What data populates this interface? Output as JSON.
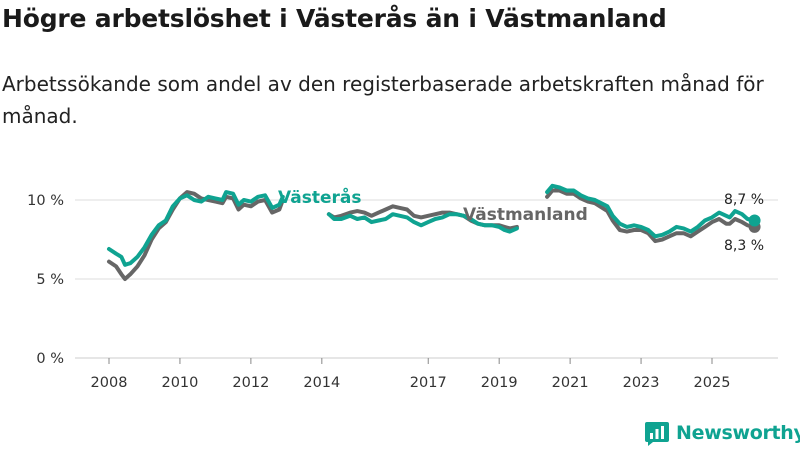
{
  "header": {
    "title": "Högre arbetslöshet i Västerås än i Västmanland",
    "subtitle": "Arbetssökande som andel av den registerbaserade arbetskraften månad för månad."
  },
  "brand": {
    "name": "Newsworthy"
  },
  "colors": {
    "vasteras": "#0fa391",
    "vastmanland": "#666666",
    "grid": "#dddddd",
    "brand": "#0fa391"
  },
  "chart_data": {
    "type": "line",
    "title": "Högre arbetslöshet i Västerås än i Västmanland",
    "subtitle": "Arbetssökande som andel av den registerbaserade arbetskraften månad för månad.",
    "xlabel": "",
    "ylabel": "",
    "ylim": [
      0,
      12
    ],
    "yticks": [
      0,
      5,
      10
    ],
    "ytick_labels": [
      "0 %",
      "5 %",
      "10 %"
    ],
    "xticks": [
      2008,
      2010,
      2012,
      2014,
      2017,
      2019,
      2021,
      2023,
      2025
    ],
    "xtick_labels": [
      "2008",
      "2010",
      "2012",
      "2014",
      "2017",
      "2019",
      "2021",
      "2023",
      "2025"
    ],
    "grid": true,
    "series": [
      {
        "name": "Västerås",
        "end_label": "8,7 %",
        "points": [
          [
            2008.0,
            6.9
          ],
          [
            2008.2,
            6.6
          ],
          [
            2008.35,
            6.4
          ],
          [
            2008.45,
            5.9
          ],
          [
            2008.6,
            6.0
          ],
          [
            2008.8,
            6.4
          ],
          [
            2009.0,
            7.0
          ],
          [
            2009.2,
            7.8
          ],
          [
            2009.4,
            8.4
          ],
          [
            2009.6,
            8.7
          ],
          [
            2009.8,
            9.6
          ],
          [
            2010.0,
            10.1
          ],
          [
            2010.2,
            10.3
          ],
          [
            2010.4,
            10.0
          ],
          [
            2010.6,
            9.9
          ],
          [
            2010.8,
            10.2
          ],
          [
            2011.0,
            10.1
          ],
          [
            2011.2,
            10.0
          ],
          [
            2011.3,
            10.5
          ],
          [
            2011.5,
            10.4
          ],
          [
            2011.65,
            9.7
          ],
          [
            2011.8,
            10.0
          ],
          [
            2012.0,
            9.9
          ],
          [
            2012.2,
            10.2
          ],
          [
            2012.4,
            10.3
          ],
          [
            2012.6,
            9.5
          ],
          [
            2012.8,
            9.7
          ],
          [
            2012.9,
            10.2
          ],
          [
            2014.2,
            9.1
          ],
          [
            2014.35,
            8.8
          ],
          [
            2014.55,
            8.8
          ],
          [
            2014.8,
            9.0
          ],
          [
            2015.0,
            8.8
          ],
          [
            2015.2,
            8.9
          ],
          [
            2015.4,
            8.6
          ],
          [
            2015.6,
            8.7
          ],
          [
            2015.8,
            8.8
          ],
          [
            2016.0,
            9.1
          ],
          [
            2016.2,
            9.0
          ],
          [
            2016.4,
            8.9
          ],
          [
            2016.6,
            8.6
          ],
          [
            2016.8,
            8.4
          ],
          [
            2017.0,
            8.6
          ],
          [
            2017.2,
            8.8
          ],
          [
            2017.4,
            8.9
          ],
          [
            2017.6,
            9.1
          ],
          [
            2017.8,
            9.1
          ],
          [
            2018.0,
            9.0
          ],
          [
            2018.2,
            8.8
          ],
          [
            2018.4,
            8.5
          ],
          [
            2018.6,
            8.4
          ],
          [
            2018.8,
            8.4
          ],
          [
            2019.0,
            8.3
          ],
          [
            2019.15,
            8.1
          ],
          [
            2019.3,
            8.0
          ],
          [
            2019.5,
            8.2
          ],
          [
            2020.35,
            10.5
          ],
          [
            2020.5,
            10.9
          ],
          [
            2020.7,
            10.8
          ],
          [
            2020.9,
            10.6
          ],
          [
            2021.1,
            10.6
          ],
          [
            2021.3,
            10.3
          ],
          [
            2021.5,
            10.1
          ],
          [
            2021.7,
            10.0
          ],
          [
            2022.05,
            9.6
          ],
          [
            2022.2,
            9.0
          ],
          [
            2022.4,
            8.5
          ],
          [
            2022.6,
            8.3
          ],
          [
            2022.8,
            8.4
          ],
          [
            2023.0,
            8.3
          ],
          [
            2023.2,
            8.1
          ],
          [
            2023.4,
            7.7
          ],
          [
            2023.6,
            7.8
          ],
          [
            2023.8,
            8.0
          ],
          [
            2024.0,
            8.3
          ],
          [
            2024.2,
            8.2
          ],
          [
            2024.4,
            8.0
          ],
          [
            2024.6,
            8.3
          ],
          [
            2024.8,
            8.7
          ],
          [
            2025.0,
            8.9
          ],
          [
            2025.2,
            9.2
          ],
          [
            2025.4,
            9.0
          ],
          [
            2025.5,
            8.9
          ],
          [
            2025.65,
            9.3
          ],
          [
            2025.85,
            9.1
          ],
          [
            2026.0,
            8.8
          ],
          [
            2026.2,
            8.7
          ]
        ]
      },
      {
        "name": "Västmanland",
        "end_label": "8,3 %",
        "points": [
          [
            2008.0,
            6.1
          ],
          [
            2008.2,
            5.8
          ],
          [
            2008.35,
            5.3
          ],
          [
            2008.45,
            5.0
          ],
          [
            2008.6,
            5.3
          ],
          [
            2008.8,
            5.8
          ],
          [
            2009.0,
            6.5
          ],
          [
            2009.2,
            7.5
          ],
          [
            2009.4,
            8.2
          ],
          [
            2009.6,
            8.6
          ],
          [
            2009.8,
            9.4
          ],
          [
            2010.0,
            10.1
          ],
          [
            2010.2,
            10.5
          ],
          [
            2010.4,
            10.4
          ],
          [
            2010.6,
            10.1
          ],
          [
            2010.8,
            10.0
          ],
          [
            2011.0,
            9.9
          ],
          [
            2011.2,
            9.8
          ],
          [
            2011.3,
            10.2
          ],
          [
            2011.5,
            10.1
          ],
          [
            2011.65,
            9.4
          ],
          [
            2011.8,
            9.7
          ],
          [
            2012.0,
            9.6
          ],
          [
            2012.2,
            9.9
          ],
          [
            2012.4,
            10.0
          ],
          [
            2012.6,
            9.2
          ],
          [
            2012.8,
            9.4
          ],
          [
            2012.9,
            10.0
          ],
          [
            2014.2,
            9.1
          ],
          [
            2014.35,
            8.9
          ],
          [
            2014.55,
            9.0
          ],
          [
            2014.8,
            9.2
          ],
          [
            2015.0,
            9.3
          ],
          [
            2015.2,
            9.2
          ],
          [
            2015.4,
            9.0
          ],
          [
            2015.6,
            9.2
          ],
          [
            2015.8,
            9.4
          ],
          [
            2016.0,
            9.6
          ],
          [
            2016.2,
            9.5
          ],
          [
            2016.4,
            9.4
          ],
          [
            2016.6,
            9.0
          ],
          [
            2016.8,
            8.9
          ],
          [
            2017.0,
            9.0
          ],
          [
            2017.2,
            9.1
          ],
          [
            2017.4,
            9.2
          ],
          [
            2017.6,
            9.2
          ],
          [
            2017.8,
            9.1
          ],
          [
            2018.0,
            9.0
          ],
          [
            2018.2,
            8.7
          ],
          [
            2018.4,
            8.5
          ],
          [
            2018.6,
            8.4
          ],
          [
            2018.8,
            8.4
          ],
          [
            2019.0,
            8.4
          ],
          [
            2019.15,
            8.3
          ],
          [
            2019.3,
            8.2
          ],
          [
            2019.5,
            8.3
          ],
          [
            2020.35,
            10.2
          ],
          [
            2020.5,
            10.6
          ],
          [
            2020.7,
            10.6
          ],
          [
            2020.9,
            10.4
          ],
          [
            2021.1,
            10.4
          ],
          [
            2021.3,
            10.1
          ],
          [
            2021.5,
            9.9
          ],
          [
            2021.7,
            9.8
          ],
          [
            2022.05,
            9.3
          ],
          [
            2022.2,
            8.7
          ],
          [
            2022.4,
            8.1
          ],
          [
            2022.6,
            8.0
          ],
          [
            2022.8,
            8.1
          ],
          [
            2023.0,
            8.1
          ],
          [
            2023.2,
            7.9
          ],
          [
            2023.4,
            7.4
          ],
          [
            2023.6,
            7.5
          ],
          [
            2023.8,
            7.7
          ],
          [
            2024.0,
            7.9
          ],
          [
            2024.2,
            7.9
          ],
          [
            2024.4,
            7.7
          ],
          [
            2024.6,
            8.0
          ],
          [
            2024.8,
            8.3
          ],
          [
            2025.0,
            8.6
          ],
          [
            2025.2,
            8.8
          ],
          [
            2025.4,
            8.5
          ],
          [
            2025.5,
            8.5
          ],
          [
            2025.65,
            8.8
          ],
          [
            2025.85,
            8.6
          ],
          [
            2026.0,
            8.4
          ],
          [
            2026.2,
            8.3
          ]
        ]
      }
    ],
    "legend": "inline labels on lines"
  }
}
